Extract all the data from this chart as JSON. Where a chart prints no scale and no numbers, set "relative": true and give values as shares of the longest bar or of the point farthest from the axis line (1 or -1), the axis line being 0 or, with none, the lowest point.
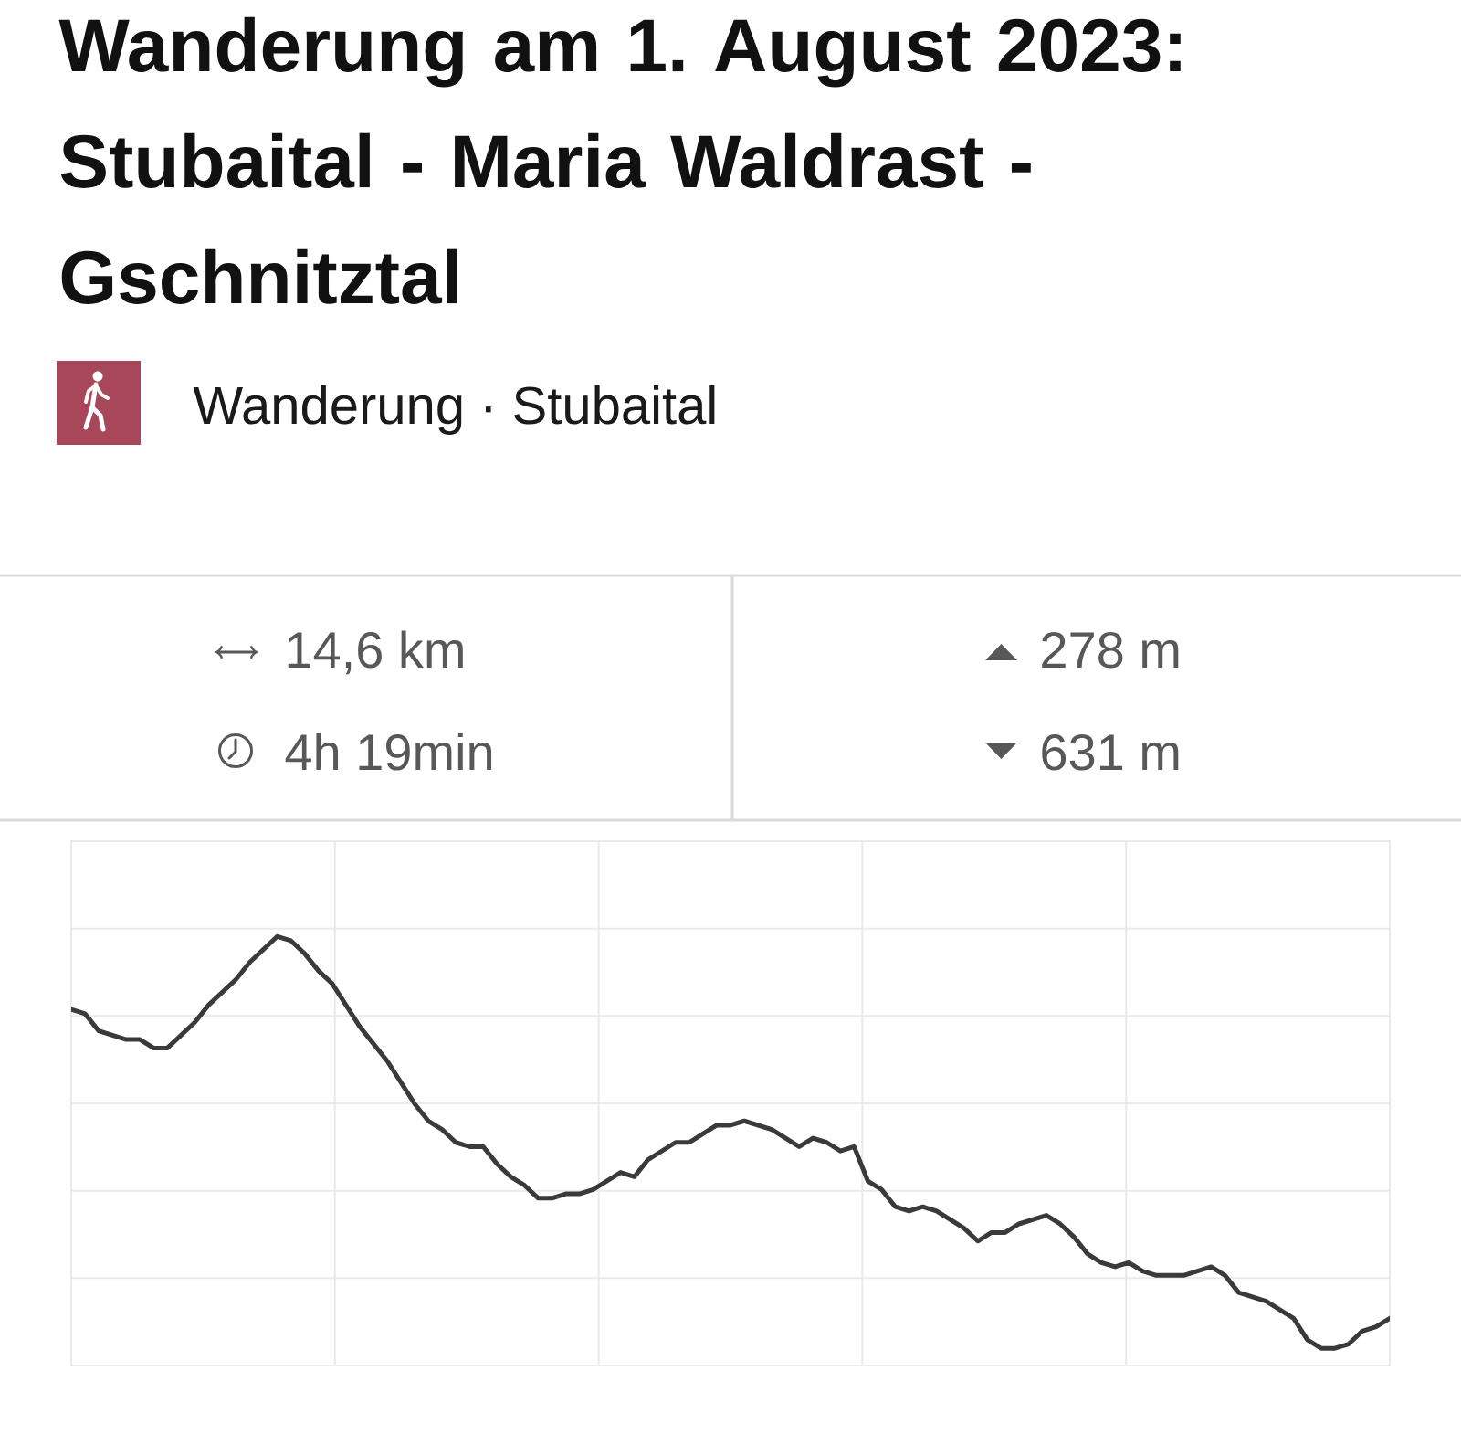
{
  "chart_data": {
    "type": "line",
    "title": "Wanderung am 1. August 2023: Stubaital - Maria Waldrast - Gschnitztal",
    "subtitle": "Wanderung · Stubaital",
    "annotations": [
      "14,6 km",
      "4h 19min",
      "278 m",
      "631 m"
    ],
    "categories": [
      null,
      null,
      null,
      null,
      null,
      null,
      null,
      null,
      null,
      null,
      null,
      null,
      null,
      null,
      null,
      null,
      null,
      null,
      null,
      null,
      null,
      null,
      null,
      null,
      null,
      null,
      null,
      null,
      null,
      null,
      null,
      null,
      null,
      null,
      null,
      null,
      null,
      null,
      null,
      null,
      null,
      null,
      null,
      null,
      null,
      null,
      null,
      null,
      null,
      null,
      null,
      null,
      null,
      null,
      null,
      null,
      null,
      null,
      null,
      null,
      null,
      null,
      null,
      null,
      null,
      null,
      null,
      null,
      null,
      null,
      null,
      null,
      null,
      null,
      null,
      null,
      null,
      null,
      null,
      null,
      null,
      null,
      null,
      null,
      null,
      null,
      null,
      null,
      null,
      null,
      null,
      null,
      null,
      null,
      null,
      null,
      null
    ],
    "values": [
      0.83,
      0.82,
      0.78,
      0.77,
      0.76,
      0.76,
      0.74,
      0.74,
      0.77,
      0.8,
      0.84,
      0.87,
      0.9,
      0.94,
      0.97,
      1.0,
      0.99,
      0.96,
      0.92,
      0.89,
      0.84,
      0.79,
      0.75,
      0.71,
      0.66,
      0.61,
      0.57,
      0.55,
      0.52,
      0.51,
      0.51,
      0.47,
      0.44,
      0.42,
      0.39,
      0.39,
      0.4,
      0.4,
      0.41,
      0.43,
      0.45,
      0.44,
      0.48,
      0.5,
      0.52,
      0.52,
      0.54,
      0.56,
      0.56,
      0.57,
      0.56,
      0.55,
      0.53,
      0.51,
      0.53,
      0.52,
      0.5,
      0.51,
      0.43,
      0.41,
      0.37,
      0.36,
      0.37,
      0.36,
      0.34,
      0.32,
      0.29,
      0.31,
      0.31,
      0.33,
      0.34,
      0.35,
      0.33,
      0.3,
      0.26,
      0.24,
      0.23,
      0.24,
      0.22,
      0.21,
      0.21,
      0.21,
      0.22,
      0.23,
      0.21,
      0.17,
      0.16,
      0.15,
      0.13,
      0.11,
      0.06,
      0.04,
      0.04,
      0.05,
      0.08,
      0.09,
      0.11
    ],
    "color": "#3a3a3a",
    "relative": true,
    "grid": true
  }
}
